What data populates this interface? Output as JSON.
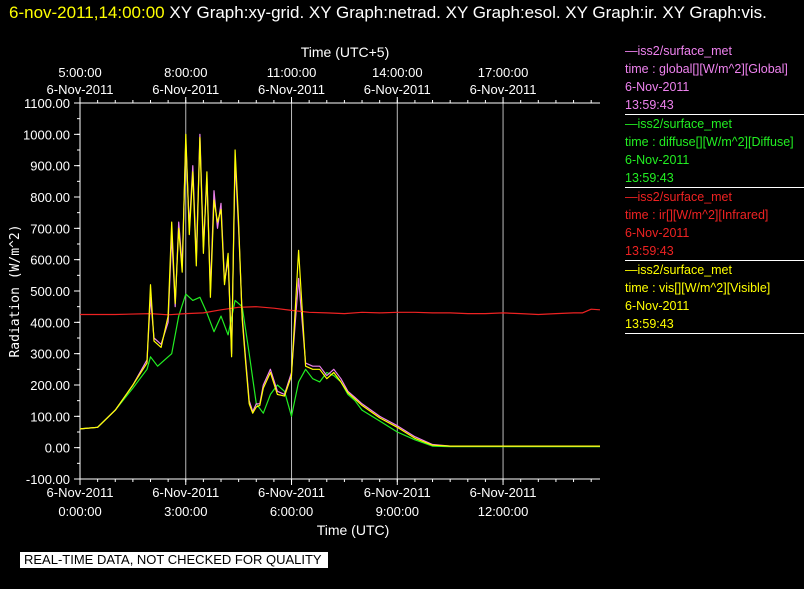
{
  "header": {
    "date": "6-nov-2011,14:00:00",
    "graphs": "XY Graph:xy-grid.  XY Graph:netrad.  XY Graph:esol.  XY Graph:ir.  XY Graph:vis."
  },
  "note": "REAL-TIME DATA, NOT CHECKED FOR QUALITY",
  "legend": [
    {
      "source": "—iss2/surface_met",
      "field": "time : global[][W/m^2][Global]",
      "date": "6-Nov-2011",
      "time": "13:59:43",
      "color": "#ee82ee"
    },
    {
      "source": "—iss2/surface_met",
      "field": "time : diffuse[][W/m^2][Diffuse]",
      "date": "6-Nov-2011",
      "time": "13:59:43",
      "color": "#22ee22"
    },
    {
      "source": "—iss2/surface_met",
      "field": "time : ir[][W/m^2][Infrared]",
      "date": "6-Nov-2011",
      "time": "13:59:43",
      "color": "#ee2222"
    },
    {
      "source": "—iss2/surface_met",
      "field": "time : vis[][W/m^2][Visible]",
      "date": "6-Nov-2011",
      "time": "13:59:43",
      "color": "#ffff00"
    }
  ],
  "chart_data": {
    "type": "line",
    "ylabel": "Radiation (W/m^2)",
    "xlabel": "Time (UTC)",
    "x2label": "Time (UTC+5)",
    "ylim": [
      -100,
      1100
    ],
    "xlim": [
      0,
      14.75
    ],
    "yticks": [
      "-100.00",
      "0.00",
      "100.00",
      "200.00",
      "300.00",
      "400.00",
      "500.00",
      "600.00",
      "700.00",
      "800.00",
      "900.00",
      "1000.00",
      "1100.00"
    ],
    "xticks_bottom": [
      {
        "date": "6-Nov-2011",
        "time": "0:00:00"
      },
      {
        "date": "6-Nov-2011",
        "time": "3:00:00"
      },
      {
        "date": "6-Nov-2011",
        "time": "6:00:00"
      },
      {
        "date": "6-Nov-2011",
        "time": "9:00:00"
      },
      {
        "date": "6-Nov-2011",
        "time": "12:00:00"
      }
    ],
    "xticks_top": [
      {
        "time": "5:00:00",
        "date": "6-Nov-2011"
      },
      {
        "time": "8:00:00",
        "date": "6-Nov-2011"
      },
      {
        "time": "11:00:00",
        "date": "6-Nov-2011"
      },
      {
        "time": "14:00:00",
        "date": "6-Nov-2011"
      },
      {
        "time": "17:00:00",
        "date": "6-Nov-2011"
      }
    ],
    "grid": "vertical lines at major x ticks",
    "series": [
      {
        "name": "global",
        "color": "#ee82ee",
        "x": [
          0,
          0.5,
          1,
          1.5,
          1.9,
          2.0,
          2.1,
          2.3,
          2.5,
          2.6,
          2.7,
          2.8,
          2.9,
          3.0,
          3.1,
          3.2,
          3.3,
          3.4,
          3.5,
          3.6,
          3.7,
          3.8,
          3.9,
          4.0,
          4.1,
          4.2,
          4.3,
          4.4,
          4.5,
          4.6,
          4.7,
          4.8,
          4.9,
          5.0,
          5.1,
          5.2,
          5.4,
          5.6,
          5.8,
          6.0,
          6.2,
          6.4,
          6.6,
          6.8,
          7.0,
          7.2,
          7.4,
          7.6,
          7.8,
          8.0,
          8.5,
          9.0,
          9.5,
          10.0,
          10.5,
          11.0,
          11.5,
          12.0,
          12.5,
          13.0,
          13.5,
          14.0,
          14.5,
          14.75
        ],
        "y": [
          60,
          65,
          120,
          200,
          280,
          480,
          350,
          330,
          400,
          680,
          450,
          720,
          580,
          980,
          700,
          900,
          600,
          1000,
          640,
          860,
          500,
          820,
          700,
          780,
          530,
          600,
          300,
          920,
          700,
          420,
          280,
          150,
          115,
          140,
          140,
          200,
          250,
          180,
          170,
          240,
          540,
          270,
          260,
          260,
          230,
          250,
          220,
          180,
          160,
          140,
          100,
          70,
          35,
          10,
          5,
          5,
          5,
          5,
          5,
          5,
          5,
          5,
          5,
          5
        ]
      },
      {
        "name": "diffuse",
        "color": "#22ee22",
        "x": [
          0,
          0.5,
          1,
          1.5,
          1.9,
          2.0,
          2.2,
          2.4,
          2.6,
          2.8,
          3.0,
          3.2,
          3.4,
          3.6,
          3.8,
          4.0,
          4.2,
          4.4,
          4.6,
          4.8,
          5.0,
          5.2,
          5.4,
          5.6,
          5.8,
          6.0,
          6.2,
          6.4,
          6.6,
          6.8,
          7.0,
          7.2,
          7.4,
          7.6,
          7.8,
          8.0,
          8.5,
          9.0,
          9.5,
          10.0,
          10.5,
          11.0,
          11.5,
          12.0,
          12.5,
          13.0,
          13.5,
          14.0,
          14.5,
          14.75
        ],
        "y": [
          60,
          65,
          120,
          190,
          250,
          290,
          260,
          280,
          300,
          420,
          490,
          470,
          480,
          430,
          370,
          420,
          360,
          470,
          450,
          300,
          140,
          110,
          170,
          200,
          180,
          100,
          210,
          250,
          220,
          210,
          240,
          230,
          210,
          170,
          150,
          120,
          85,
          50,
          25,
          5,
          3,
          3,
          3,
          3,
          3,
          3,
          3,
          3,
          3,
          3
        ]
      },
      {
        "name": "ir",
        "color": "#ee2222",
        "x": [
          0,
          1,
          2,
          2.5,
          3,
          3.5,
          4,
          4.5,
          5,
          5.5,
          6,
          6.5,
          7,
          7.5,
          8,
          8.5,
          9,
          9.5,
          10,
          10.5,
          11,
          11.5,
          12,
          12.5,
          13,
          13.5,
          14,
          14.25,
          14.5,
          14.75
        ],
        "y": [
          425,
          425,
          428,
          424,
          428,
          430,
          440,
          448,
          450,
          445,
          438,
          432,
          430,
          428,
          432,
          430,
          432,
          432,
          430,
          430,
          428,
          428,
          430,
          428,
          425,
          428,
          430,
          430,
          442,
          440
        ]
      },
      {
        "name": "vis",
        "color": "#ffff00",
        "x": [
          0,
          0.5,
          1,
          1.5,
          1.9,
          2.0,
          2.1,
          2.3,
          2.5,
          2.6,
          2.7,
          2.8,
          2.9,
          3.0,
          3.1,
          3.2,
          3.3,
          3.4,
          3.5,
          3.6,
          3.7,
          3.8,
          3.9,
          4.0,
          4.1,
          4.2,
          4.3,
          4.4,
          4.5,
          4.6,
          4.7,
          4.8,
          4.9,
          5.0,
          5.1,
          5.2,
          5.4,
          5.6,
          5.8,
          6.0,
          6.2,
          6.4,
          6.6,
          6.8,
          7.0,
          7.2,
          7.4,
          7.6,
          7.8,
          8.0,
          8.5,
          9.0,
          9.5,
          10.0,
          10.5,
          11.0,
          11.5,
          12.0,
          12.5,
          13.0,
          13.5,
          14.0,
          14.5,
          14.75
        ],
        "y": [
          60,
          65,
          120,
          200,
          270,
          520,
          340,
          320,
          420,
          720,
          460,
          700,
          560,
          1000,
          680,
          880,
          580,
          990,
          620,
          880,
          480,
          790,
          720,
          760,
          520,
          620,
          290,
          950,
          720,
          410,
          270,
          140,
          110,
          130,
          135,
          190,
          240,
          170,
          165,
          230,
          630,
          260,
          250,
          250,
          220,
          240,
          210,
          175,
          155,
          135,
          95,
          65,
          30,
          8,
          5,
          5,
          5,
          5,
          5,
          5,
          5,
          5,
          5,
          5
        ]
      }
    ]
  }
}
